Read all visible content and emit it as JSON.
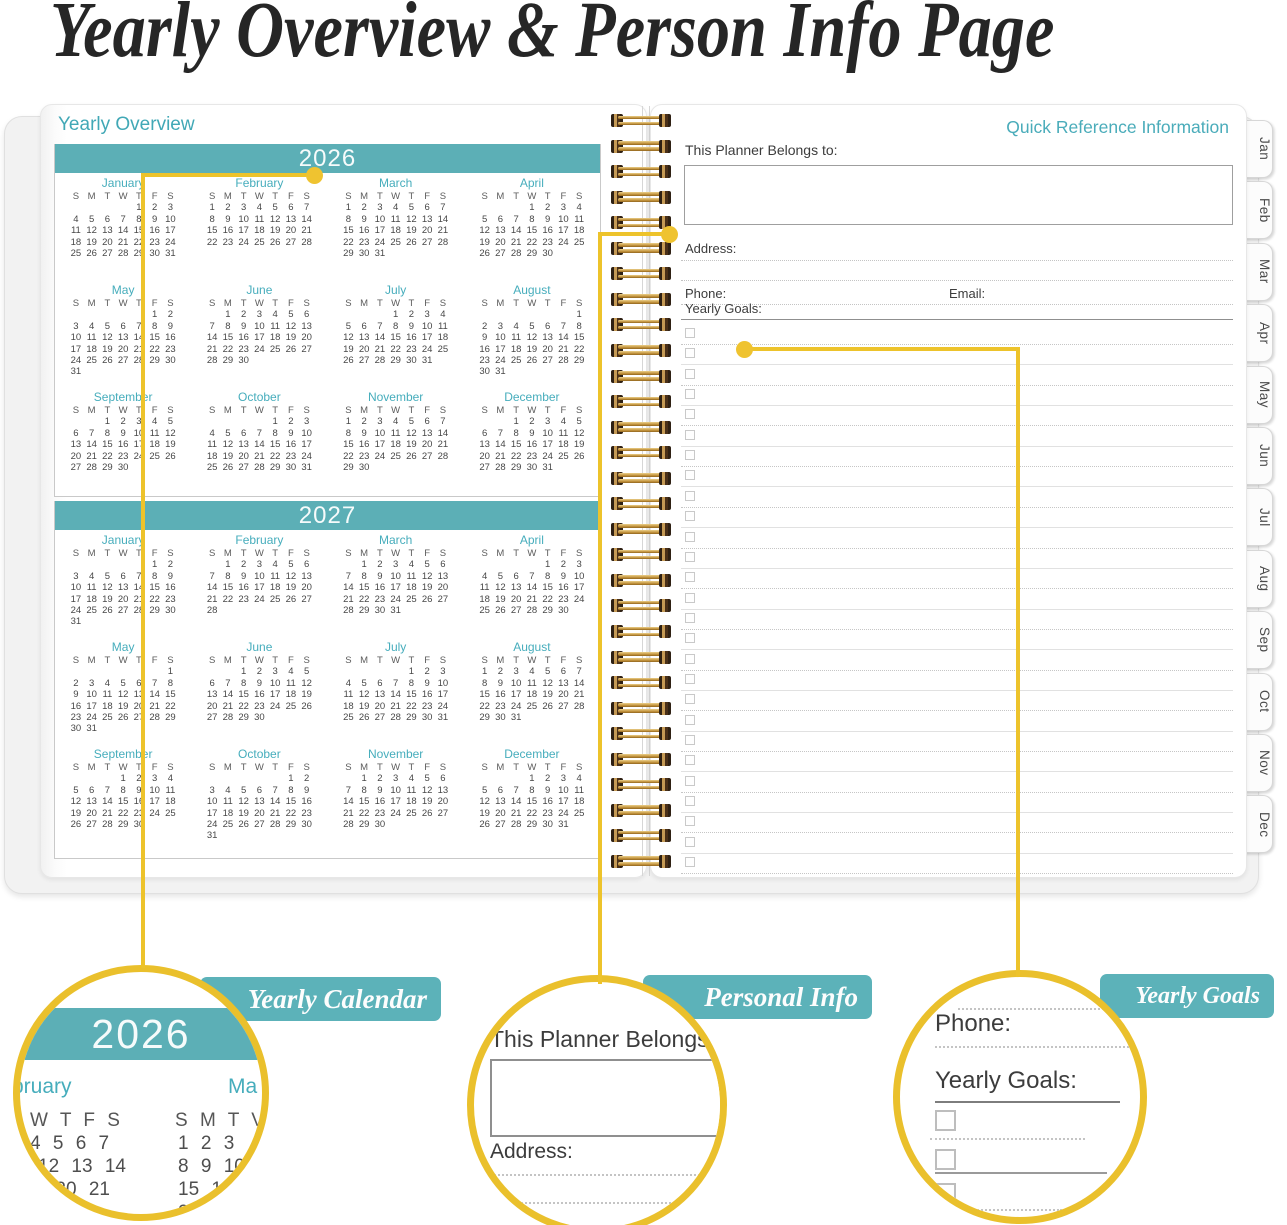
{
  "page_title": "Yearly Overview & Person Info Page",
  "left_page": {
    "heading": "Yearly Overview",
    "day_headers": [
      "S",
      "M",
      "T",
      "W",
      "T",
      "F",
      "S"
    ],
    "years": [
      {
        "year": "2026",
        "months": [
          {
            "name": "January",
            "start": 4,
            "days": 31
          },
          {
            "name": "February",
            "start": 0,
            "days": 28
          },
          {
            "name": "March",
            "start": 0,
            "days": 31
          },
          {
            "name": "April",
            "start": 3,
            "days": 30
          },
          {
            "name": "May",
            "start": 5,
            "days": 31
          },
          {
            "name": "June",
            "start": 1,
            "days": 30
          },
          {
            "name": "July",
            "start": 3,
            "days": 31
          },
          {
            "name": "August",
            "start": 6,
            "days": 31
          },
          {
            "name": "September",
            "start": 2,
            "days": 30
          },
          {
            "name": "October",
            "start": 4,
            "days": 31
          },
          {
            "name": "November",
            "start": 0,
            "days": 30
          },
          {
            "name": "December",
            "start": 2,
            "days": 31
          }
        ]
      },
      {
        "year": "2027",
        "months": [
          {
            "name": "January",
            "start": 5,
            "days": 31
          },
          {
            "name": "February",
            "start": 1,
            "days": 28
          },
          {
            "name": "March",
            "start": 1,
            "days": 31
          },
          {
            "name": "April",
            "start": 4,
            "days": 30
          },
          {
            "name": "May",
            "start": 6,
            "days": 31
          },
          {
            "name": "June",
            "start": 2,
            "days": 30
          },
          {
            "name": "July",
            "start": 4,
            "days": 31
          },
          {
            "name": "August",
            "start": 0,
            "days": 31
          },
          {
            "name": "September",
            "start": 3,
            "days": 30
          },
          {
            "name": "October",
            "start": 5,
            "days": 31
          },
          {
            "name": "November",
            "start": 1,
            "days": 30
          },
          {
            "name": "December",
            "start": 3,
            "days": 31
          }
        ]
      }
    ]
  },
  "right_page": {
    "heading": "Quick Reference Information",
    "belongs_label": "This Planner Belongs to:",
    "address_label": "Address:",
    "phone_label": "Phone:",
    "email_label": "Email:",
    "goals_label": "Yearly Goals:",
    "goal_row_count": 27,
    "tabs": [
      "Jan",
      "Feb",
      "Mar",
      "Apr",
      "May",
      "Jun",
      "Jul",
      "Aug",
      "Sep",
      "Oct",
      "Nov",
      "Dec"
    ]
  },
  "binding": {
    "coil_count": 30
  },
  "callouts": {
    "yearly_calendar": {
      "tag": "Yearly Calendar",
      "year": "2026",
      "month_left_partial": "bruary",
      "month_right_partial": "Ma",
      "header_left": "W T F S",
      "header_right": "S M T V",
      "rows_left": [
        "4 5 6 7",
        "11 12 13 14",
        "19 20 21",
        "7 28"
      ],
      "rows_right": [
        "1 2 3",
        "8 9 10",
        "15 16",
        "2"
      ]
    },
    "personal_info": {
      "tag": "Personal Info",
      "belongs_label": "This Planner Belongs to",
      "address_label": "Address:"
    },
    "yearly_goals": {
      "tag": "Yearly Goals",
      "phone_label": "Phone:",
      "goals_label": "Yearly Goals:"
    }
  },
  "colors": {
    "teal": "#5cafb6",
    "teal_text": "#46adbc",
    "gold": "#eac02c",
    "ink": "#3d3d3d"
  }
}
